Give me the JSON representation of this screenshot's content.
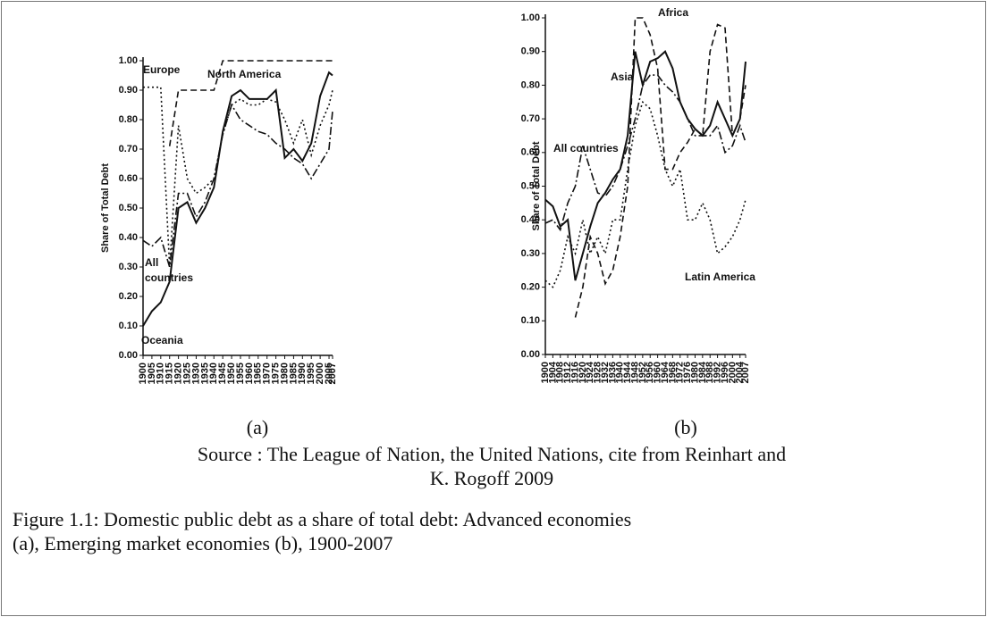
{
  "chart_data": [
    {
      "type": "line",
      "panel": "(a)",
      "ylabel": "Share of Total Debt",
      "x": [
        1900,
        1905,
        1910,
        1915,
        1920,
        1925,
        1930,
        1935,
        1940,
        1945,
        1950,
        1955,
        1960,
        1965,
        1970,
        1975,
        1980,
        1985,
        1990,
        1995,
        2000,
        2005,
        2007
      ],
      "xlim": [
        1900,
        2007
      ],
      "xticks": [
        1900,
        1905,
        1910,
        1915,
        1920,
        1925,
        1930,
        1935,
        1940,
        1945,
        1950,
        1955,
        1960,
        1965,
        1970,
        1975,
        1980,
        1985,
        1990,
        1995,
        2000,
        2005,
        2007
      ],
      "ylim": [
        0,
        1
      ],
      "yticks": [
        {
          "value": 0,
          "label": "0.00"
        },
        {
          "value": 0.1,
          "label": "0.10"
        },
        {
          "value": 0.2,
          "label": "0.20"
        },
        {
          "value": 0.3,
          "label": "0.30"
        },
        {
          "value": 0.4,
          "label": "0.40"
        },
        {
          "value": 0.5,
          "label": "0.50"
        },
        {
          "value": 0.6,
          "label": "0.60"
        },
        {
          "value": 0.7,
          "label": "0.70"
        },
        {
          "value": 0.8,
          "label": "0.80"
        },
        {
          "value": 0.9,
          "label": "0.90"
        },
        {
          "value": 1,
          "label": "1.00"
        }
      ],
      "series": [
        {
          "name": "Europe",
          "color": "#111111",
          "dash": "dotted",
          "values": [
            0.91,
            0.91,
            0.91,
            0.3,
            0.78,
            0.6,
            0.55,
            0.57,
            0.6,
            0.75,
            0.85,
            0.87,
            0.85,
            0.85,
            0.87,
            0.86,
            0.8,
            0.72,
            0.8,
            0.68,
            0.78,
            0.85,
            0.9
          ]
        },
        {
          "name": "North America",
          "color": "#111111",
          "dash": "dashed",
          "values": [
            null,
            null,
            null,
            0.71,
            0.9,
            0.9,
            0.9,
            0.9,
            0.9,
            1.0,
            1.0,
            1.0,
            1.0,
            1.0,
            1.0,
            1.0,
            1.0,
            1.0,
            1.0,
            1.0,
            1.0,
            1.0,
            1.0
          ]
        },
        {
          "name": "All countries",
          "color": "#111111",
          "dash": "dashdot",
          "values": [
            0.39,
            0.37,
            0.4,
            0.3,
            0.55,
            0.55,
            0.47,
            0.52,
            0.6,
            0.75,
            0.85,
            0.8,
            0.78,
            0.76,
            0.75,
            0.72,
            0.7,
            0.67,
            0.65,
            0.6,
            0.65,
            0.7,
            0.83
          ]
        },
        {
          "name": "Oceania",
          "color": "#111111",
          "dash": "solid",
          "values": [
            0.1,
            0.15,
            0.18,
            0.25,
            0.5,
            0.52,
            0.45,
            0.5,
            0.57,
            0.76,
            0.88,
            0.9,
            0.87,
            0.87,
            0.87,
            0.9,
            0.67,
            0.7,
            0.66,
            0.72,
            0.88,
            0.96,
            0.95
          ]
        }
      ]
    },
    {
      "type": "line",
      "panel": "(b)",
      "ylabel": "Share of Total Debt",
      "x": [
        1900,
        1904,
        1908,
        1912,
        1916,
        1920,
        1924,
        1928,
        1932,
        1936,
        1940,
        1944,
        1948,
        1952,
        1956,
        1960,
        1964,
        1968,
        1972,
        1976,
        1980,
        1984,
        1988,
        1992,
        1996,
        2000,
        2004,
        2007
      ],
      "xlim": [
        1900,
        2007
      ],
      "xticks": [
        1900,
        1904,
        1908,
        1912,
        1916,
        1920,
        1924,
        1928,
        1932,
        1936,
        1940,
        1944,
        1948,
        1952,
        1956,
        1960,
        1964,
        1968,
        1972,
        1976,
        1980,
        1984,
        1988,
        1992,
        1996,
        2000,
        2004,
        2007
      ],
      "ylim": [
        0,
        1
      ],
      "yticks": [
        {
          "value": 0,
          "label": "0.00"
        },
        {
          "value": 0.1,
          "label": "0.10"
        },
        {
          "value": 0.2,
          "label": "0.20"
        },
        {
          "value": 0.3,
          "label": "0.30"
        },
        {
          "value": 0.4,
          "label": "0.40"
        },
        {
          "value": 0.5,
          "label": "0.50"
        },
        {
          "value": 0.6,
          "label": "0.60"
        },
        {
          "value": 0.7,
          "label": "0.70"
        },
        {
          "value": 0.8,
          "label": "0.80"
        },
        {
          "value": 0.9,
          "label": "0.90"
        },
        {
          "value": 1,
          "label": "1.00"
        }
      ],
      "series": [
        {
          "name": "Asia",
          "color": "#111111",
          "dash": "solid",
          "values": [
            0.46,
            0.44,
            0.38,
            0.4,
            0.22,
            0.3,
            0.38,
            0.45,
            0.48,
            0.52,
            0.55,
            0.65,
            0.9,
            0.8,
            0.87,
            0.88,
            0.9,
            0.85,
            0.75,
            0.7,
            0.67,
            0.65,
            0.68,
            0.75,
            0.7,
            0.65,
            0.7,
            0.87
          ]
        },
        {
          "name": "Africa",
          "color": "#111111",
          "dash": "dashed",
          "values": [
            null,
            null,
            null,
            null,
            0.11,
            0.2,
            0.35,
            0.3,
            0.21,
            0.25,
            0.35,
            0.5,
            1.0,
            1.0,
            0.95,
            0.85,
            0.55,
            0.55,
            0.6,
            0.63,
            0.67,
            0.65,
            0.9,
            0.98,
            0.97,
            0.65,
            0.7,
            0.8
          ]
        },
        {
          "name": "All countries",
          "color": "#111111",
          "dash": "dashdot",
          "values": [
            0.39,
            0.4,
            0.37,
            0.45,
            0.5,
            0.62,
            0.55,
            0.48,
            0.47,
            0.5,
            0.55,
            0.62,
            0.7,
            0.8,
            0.83,
            0.83,
            0.8,
            0.78,
            0.75,
            0.7,
            0.65,
            0.65,
            0.65,
            0.68,
            0.6,
            0.62,
            0.68,
            0.63
          ]
        },
        {
          "name": "Latin America",
          "color": "#111111",
          "dash": "dotted",
          "values": [
            0.22,
            0.2,
            0.25,
            0.35,
            0.3,
            0.4,
            0.3,
            0.35,
            0.3,
            0.4,
            0.4,
            0.55,
            0.68,
            0.75,
            0.73,
            0.65,
            0.55,
            0.5,
            0.55,
            0.4,
            0.4,
            0.45,
            0.4,
            0.3,
            0.32,
            0.35,
            0.4,
            0.46
          ]
        }
      ]
    }
  ],
  "source": [
    "Source : The League of Nation, the United Nations, cite from Reinhart and",
    "K. Rogoff 2009"
  ],
  "caption": [
    "Figure 1.1: Domestic public debt as a share of total debt: Advanced economies",
    "(a), Emerging market economies (b), 1900-2007"
  ]
}
